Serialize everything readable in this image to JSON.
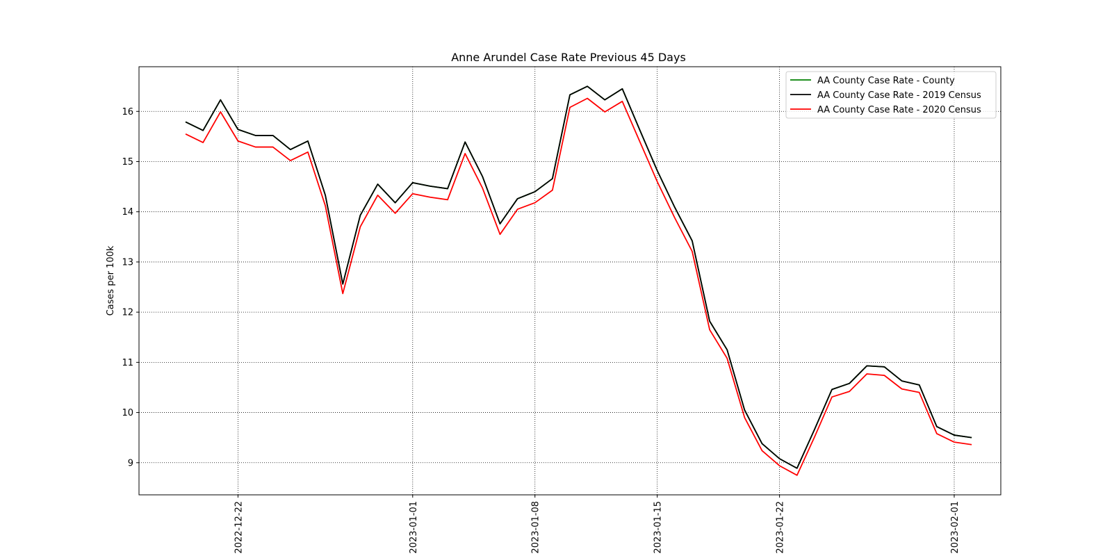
{
  "chart_data": {
    "type": "line",
    "title": "Anne Arundel Case Rate Previous 45 Days",
    "xlabel": "",
    "ylabel": "Cases per 100k",
    "x": [
      "2022-12-19",
      "2022-12-20",
      "2022-12-21",
      "2022-12-22",
      "2022-12-23",
      "2022-12-24",
      "2022-12-25",
      "2022-12-26",
      "2022-12-27",
      "2022-12-28",
      "2022-12-29",
      "2022-12-30",
      "2022-12-31",
      "2023-01-01",
      "2023-01-02",
      "2023-01-03",
      "2023-01-04",
      "2023-01-05",
      "2023-01-06",
      "2023-01-07",
      "2023-01-08",
      "2023-01-09",
      "2023-01-10",
      "2023-01-11",
      "2023-01-12",
      "2023-01-13",
      "2023-01-14",
      "2023-01-15",
      "2023-01-16",
      "2023-01-17",
      "2023-01-18",
      "2023-01-19",
      "2023-01-20",
      "2023-01-21",
      "2023-01-22",
      "2023-01-23",
      "2023-01-24",
      "2023-01-25",
      "2023-01-26",
      "2023-01-27",
      "2023-01-28",
      "2023-01-29",
      "2023-01-30",
      "2023-01-31",
      "2023-02-01",
      "2023-02-02"
    ],
    "series": [
      {
        "name": "AA County Case Rate - County",
        "color": "#008000",
        "values": [
          15.79,
          15.62,
          16.23,
          15.64,
          15.52,
          15.52,
          15.24,
          15.41,
          14.33,
          12.56,
          13.93,
          14.55,
          14.18,
          14.58,
          14.51,
          14.46,
          15.39,
          14.7,
          13.76,
          14.26,
          14.4,
          14.66,
          16.33,
          16.5,
          16.23,
          16.45,
          15.63,
          14.82,
          14.09,
          13.42,
          11.82,
          11.25,
          10.05,
          9.38,
          9.08,
          8.89,
          9.66,
          10.46,
          10.58,
          10.93,
          10.91,
          10.63,
          10.55,
          9.72,
          9.55,
          9.5
        ]
      },
      {
        "name": "AA County Case Rate - 2019 Census",
        "color": "#000000",
        "values": [
          15.79,
          15.62,
          16.23,
          15.64,
          15.52,
          15.52,
          15.24,
          15.41,
          14.33,
          12.56,
          13.93,
          14.55,
          14.18,
          14.58,
          14.51,
          14.46,
          15.39,
          14.7,
          13.76,
          14.26,
          14.4,
          14.66,
          16.33,
          16.5,
          16.23,
          16.45,
          15.63,
          14.82,
          14.09,
          13.42,
          11.82,
          11.25,
          10.05,
          9.38,
          9.08,
          8.89,
          9.66,
          10.46,
          10.58,
          10.93,
          10.91,
          10.63,
          10.55,
          9.72,
          9.55,
          9.5
        ]
      },
      {
        "name": "AA County Case Rate - 2020 Census",
        "color": "#ff0000",
        "values": [
          15.55,
          15.38,
          15.99,
          15.41,
          15.29,
          15.29,
          15.02,
          15.19,
          14.12,
          12.37,
          13.7,
          14.33,
          13.97,
          14.36,
          14.29,
          14.24,
          15.16,
          14.47,
          13.55,
          14.05,
          14.18,
          14.43,
          16.08,
          16.26,
          15.99,
          16.2,
          15.4,
          14.6,
          13.88,
          13.21,
          11.65,
          11.08,
          9.9,
          9.24,
          8.94,
          8.75,
          9.51,
          10.31,
          10.42,
          10.77,
          10.74,
          10.47,
          10.4,
          9.58,
          9.41,
          9.36
        ]
      }
    ],
    "x_ticks": [
      "2022-12-22",
      "2023-01-01",
      "2023-01-08",
      "2023-01-15",
      "2023-01-22",
      "2023-02-01"
    ],
    "y_ticks": [
      9,
      10,
      11,
      12,
      13,
      14,
      15,
      16
    ],
    "xlim": [
      "2022-12-16 20:00",
      "2023-02-04 04:00"
    ],
    "ylim": [
      8.36,
      16.89
    ],
    "grid": true,
    "grid_style": "dotted",
    "legend_position": "top-right"
  }
}
